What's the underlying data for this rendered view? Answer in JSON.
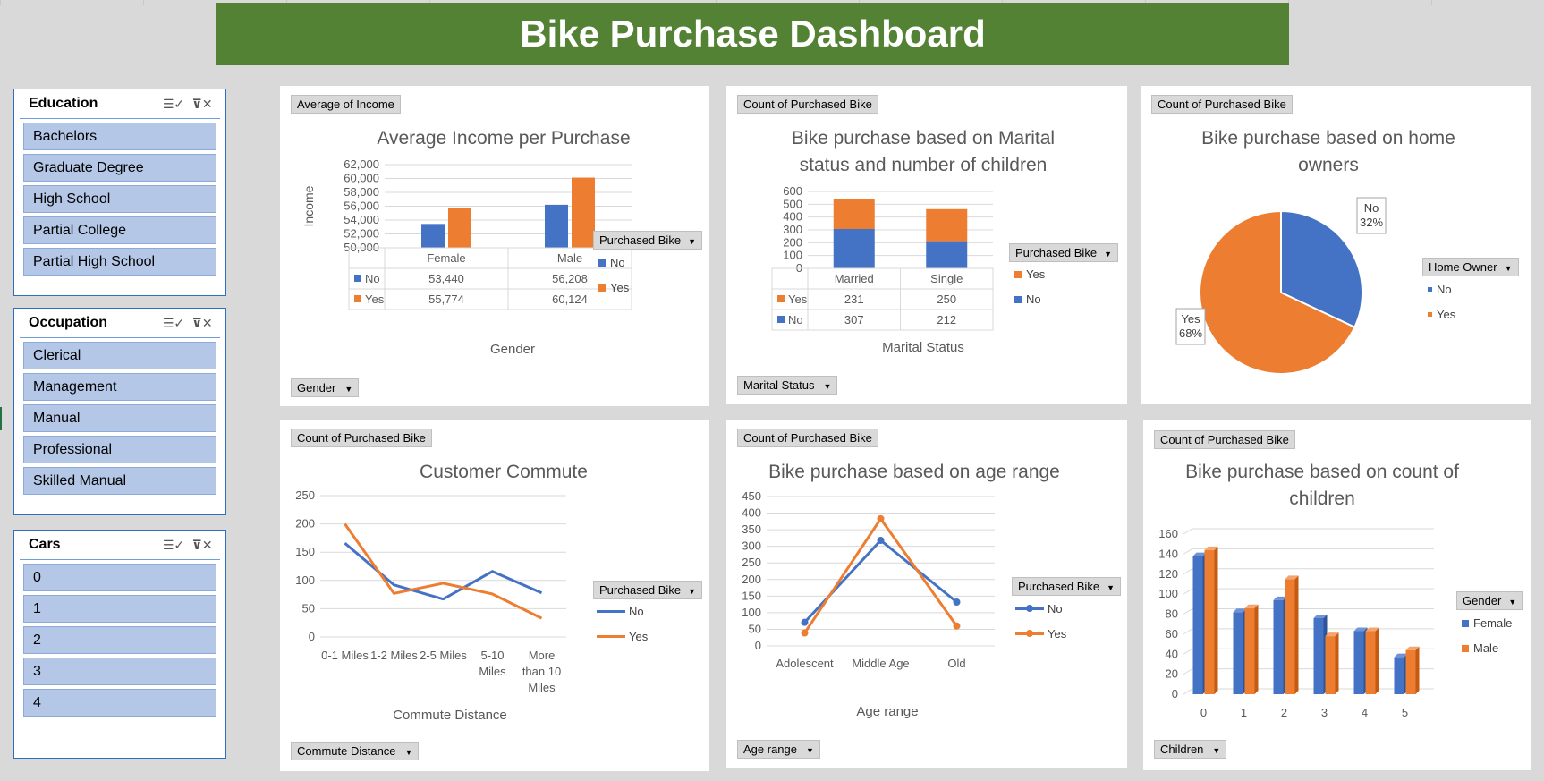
{
  "dashboard": {
    "title": "Bike Purchase Dashboard"
  },
  "slicers": [
    {
      "title": "Education",
      "items": [
        "Bachelors",
        "Graduate Degree",
        "High School",
        "Partial College",
        "Partial High School"
      ]
    },
    {
      "title": "Occupation",
      "items": [
        "Clerical",
        "Management",
        "Manual",
        "Professional",
        "Skilled Manual"
      ]
    },
    {
      "title": "Cars",
      "items": [
        "0",
        "1",
        "2",
        "3",
        "4"
      ]
    }
  ],
  "colors": {
    "blue": "#4472c4",
    "orange": "#ed7d31",
    "green": "#548235",
    "slicer_item": "#b4c7e7"
  },
  "panels": {
    "income": {
      "value_field": "Average of Income",
      "axis_field": "Gender",
      "legend_title": "Purchased Bike",
      "xlabel": "Gender"
    },
    "marital": {
      "value_field": "Count of Purchased Bike",
      "axis_field": "Marital Status",
      "legend_title": "Purchased Bike",
      "xlabel": "Marital Status"
    },
    "home": {
      "value_field": "Count of Purchased Bike",
      "legend_title": "Home Owner"
    },
    "commute": {
      "value_field": "Count of Purchased Bike",
      "axis_field": "Commute Distance",
      "legend_title": "Purchased Bike",
      "xlabel": "Commute Distance"
    },
    "age": {
      "value_field": "Count of Purchased Bike",
      "axis_field": "Age range",
      "legend_title": "Purchased Bike",
      "xlabel": "Age range"
    },
    "children": {
      "value_field": "Count of Purchased Bike",
      "axis_field": "Children",
      "legend_title": "Gender"
    }
  },
  "chart_data": [
    {
      "id": "income",
      "type": "bar",
      "title": "Average Income per Purchase",
      "xlabel": "Gender",
      "ylabel": "Income",
      "categories": [
        "Female",
        "Male"
      ],
      "series": [
        {
          "name": "No",
          "values": [
            53440,
            56208
          ]
        },
        {
          "name": "Yes",
          "values": [
            55774,
            60124
          ]
        }
      ],
      "table": [
        [
          "No",
          "53,440",
          "56,208"
        ],
        [
          "Yes",
          "55,774",
          "60,124"
        ]
      ],
      "yticks": [
        "62,000",
        "60,000",
        "58,000",
        "56,000",
        "54,000",
        "52,000",
        "50,000"
      ],
      "ylim": [
        50000,
        62000
      ],
      "legend": "right",
      "grid": true
    },
    {
      "id": "marital",
      "type": "bar",
      "stacked": true,
      "title": "Bike purchase based on Marital status and number of children",
      "xlabel": "Marital Status",
      "categories": [
        "Married",
        "Single"
      ],
      "series": [
        {
          "name": "No",
          "values": [
            307,
            212
          ]
        },
        {
          "name": "Yes",
          "values": [
            231,
            250
          ]
        }
      ],
      "table": [
        [
          "Yes",
          "231",
          "250"
        ],
        [
          "No",
          "307",
          "212"
        ]
      ],
      "yticks": [
        "600",
        "500",
        "400",
        "300",
        "200",
        "100",
        "0"
      ],
      "ylim": [
        0,
        600
      ],
      "legend": "right",
      "grid": true
    },
    {
      "id": "home",
      "type": "pie",
      "title": "Bike purchase based on home owners",
      "slices": [
        {
          "name": "No",
          "value": 32,
          "label": "No\n32%"
        },
        {
          "name": "Yes",
          "value": 68,
          "label": "Yes\n68%"
        }
      ],
      "legend": "right"
    },
    {
      "id": "commute",
      "type": "line",
      "title": "Customer Commute",
      "xlabel": "Commute Distance",
      "categories": [
        "0-1 Miles",
        "1-2 Miles",
        "2-5 Miles",
        "5-10 Miles",
        "More than 10 Miles"
      ],
      "series": [
        {
          "name": "No",
          "values": [
            166,
            92,
            67,
            116,
            78
          ]
        },
        {
          "name": "Yes",
          "values": [
            200,
            77,
            95,
            76,
            33
          ]
        }
      ],
      "yticks": [
        "250",
        "200",
        "150",
        "100",
        "50",
        "0"
      ],
      "ylim": [
        0,
        250
      ],
      "legend": "right",
      "grid": true
    },
    {
      "id": "age",
      "type": "line",
      "markers": true,
      "title": "Bike purchase based on age range",
      "xlabel": "Age range",
      "categories": [
        "Adolescent",
        "Middle Age",
        "Old"
      ],
      "series": [
        {
          "name": "No",
          "values": [
            71,
            318,
            132
          ]
        },
        {
          "name": "Yes",
          "values": [
            39,
            383,
            60
          ]
        }
      ],
      "yticks": [
        "450",
        "400",
        "350",
        "300",
        "250",
        "200",
        "150",
        "100",
        "50",
        "0"
      ],
      "ylim": [
        0,
        450
      ],
      "legend": "right",
      "grid": true
    },
    {
      "id": "children",
      "type": "bar",
      "style": "3d",
      "title": "Bike purchase based on count of children",
      "categories": [
        "0",
        "1",
        "2",
        "3",
        "4",
        "5"
      ],
      "series": [
        {
          "name": "Female",
          "values": [
            138,
            82,
            94,
            76,
            63,
            37
          ]
        },
        {
          "name": "Male",
          "values": [
            144,
            86,
            115,
            58,
            63,
            44
          ]
        }
      ],
      "yticks": [
        "160",
        "140",
        "120",
        "100",
        "80",
        "60",
        "40",
        "20",
        "0"
      ],
      "ylim": [
        0,
        160
      ],
      "legend": "right",
      "grid": true
    }
  ]
}
